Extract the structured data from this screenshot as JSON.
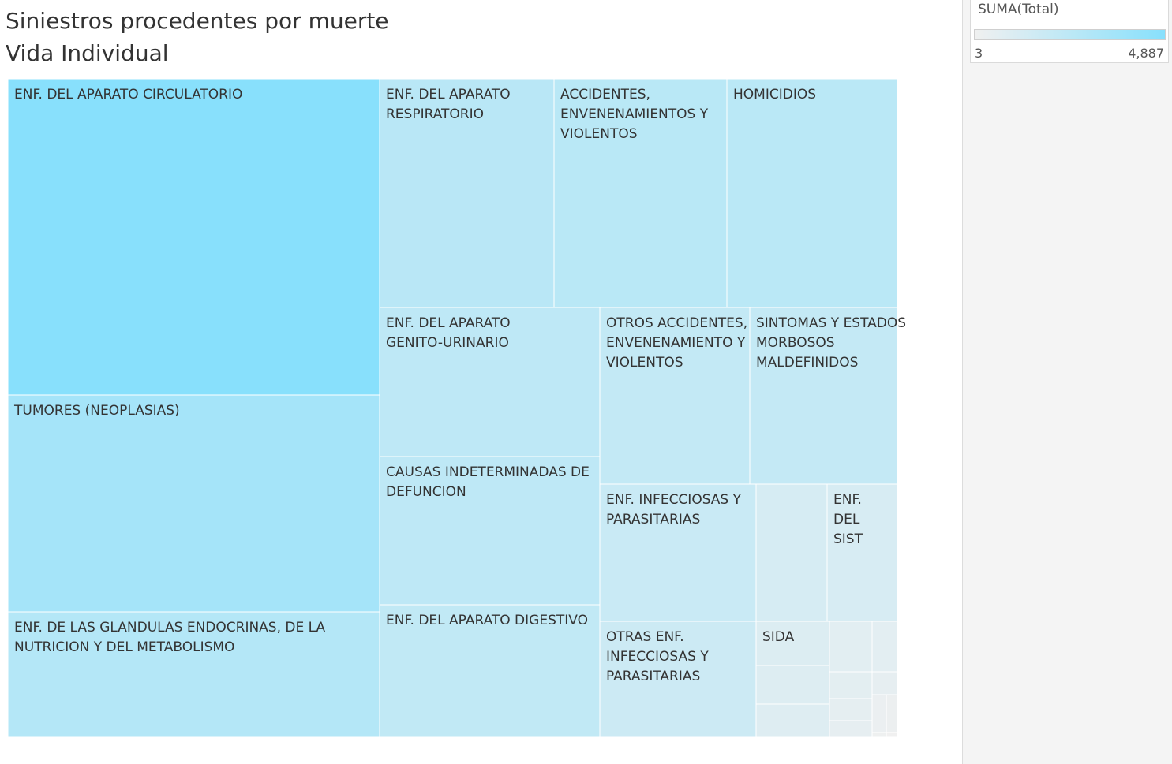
{
  "title_line1": "Siniestros procedentes por muerte",
  "title_line2": "Vida Individual",
  "legend": {
    "title": "SUMA(Total)",
    "min_label": "3",
    "max_label": "4,887",
    "min_value": 3,
    "max_value": 4887,
    "color_low": "#f0f0f0",
    "color_high": "#88e0fc"
  },
  "chart_data": {
    "type": "treemap",
    "title": "Siniestros procedentes por muerte Vida Individual",
    "measure": "SUMA(Total)",
    "items": [
      {
        "label": "ENF. DEL APARATO CIRCULATORIO",
        "value": 4887
      },
      {
        "label": "TUMORES (NEOPLASIAS)",
        "value": 2700
      },
      {
        "label": "ENF. DE LAS GLANDULAS ENDOCRINAS, DE  LA NUTRICION Y DEL METABOLISMO",
        "value": 1800
      },
      {
        "label": "ENF. DEL APARATO RESPIRATORIO",
        "value": 1550
      },
      {
        "label": "ACCIDENTES, ENVENENAMIENTOS Y VIOLENTOS",
        "value": 1530
      },
      {
        "label": "HOMICIDIOS",
        "value": 1510
      },
      {
        "label": "ENF. DEL APARATO GENITO-URINARIO",
        "value": 1270
      },
      {
        "label": "CAUSAS INDETERMINADAS DE DEFUNCION",
        "value": 1270
      },
      {
        "label": "ENF. DEL APARATO DIGESTIVO",
        "value": 1140
      },
      {
        "label": "OTROS ACCIDENTES, ENVENENAMIENTO Y VIOLENTOS",
        "value": 1050
      },
      {
        "label": "SINTOMAS Y ESTADOS MORBOSOS MALDEFINIDOS",
        "value": 1030
      },
      {
        "label": "ENF. INFECCIOSAS Y PARASITARIAS",
        "value": 840
      },
      {
        "label": "OTRAS ENF. INFECCIOSAS Y PARASITARIAS",
        "value": 710
      },
      {
        "label": "",
        "value": 390
      },
      {
        "label": "ENF. DEL SIST",
        "value": 380
      },
      {
        "label": "SIDA",
        "value": 240
      },
      {
        "label": "",
        "value": 220
      },
      {
        "label": "",
        "value": 210
      },
      {
        "label": "",
        "value": 130
      },
      {
        "label": "",
        "value": 120
      },
      {
        "label": "",
        "value": 110
      },
      {
        "label": "",
        "value": 80
      },
      {
        "label": "",
        "value": 75
      },
      {
        "label": "",
        "value": 70
      },
      {
        "label": "",
        "value": 25
      },
      {
        "label": "",
        "value": 15
      },
      {
        "label": "",
        "value": 8
      },
      {
        "label": "",
        "value": 3
      }
    ]
  }
}
